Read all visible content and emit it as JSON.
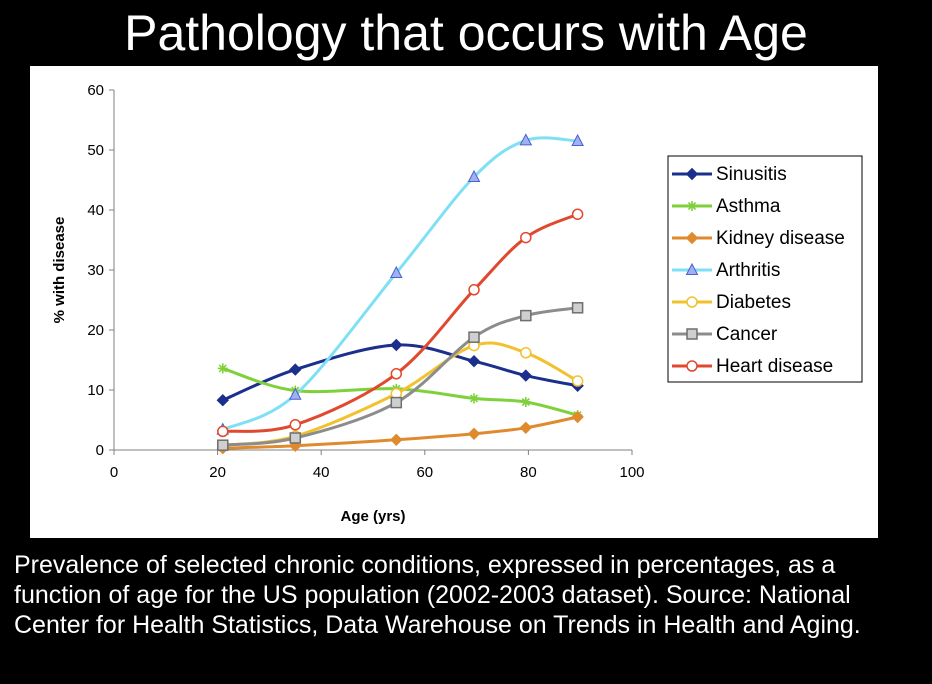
{
  "slide": {
    "title": "Pathology that occurs with Age",
    "caption": "Prevalence of selected chronic conditions, expressed in percentages, as a function of age for the US population (2002-2003 dataset). Source: National Center for Health Statistics, Data Warehouse on Trends in Health and Aging."
  },
  "chart_data": {
    "type": "line",
    "title": "",
    "xlabel": "Age (yrs)",
    "ylabel": "% with disease",
    "xlim": [
      0,
      100
    ],
    "ylim": [
      0,
      60
    ],
    "xticks": [
      0,
      20,
      40,
      60,
      80,
      100
    ],
    "yticks": [
      0,
      10,
      20,
      30,
      40,
      50,
      60
    ],
    "grid": false,
    "legend": "right",
    "series": [
      {
        "name": "Sinusitis",
        "color": "#1b2f8c",
        "marker": "diamond",
        "x": [
          21,
          35,
          54.5,
          69.5,
          79.5,
          89.5
        ],
        "y": [
          8.3,
          13.4,
          17.5,
          14.8,
          12.4,
          10.7
        ]
      },
      {
        "name": "Asthma",
        "color": "#7fd13b",
        "marker": "asterisk",
        "x": [
          21,
          35,
          54.5,
          69.5,
          79.5,
          89.5
        ],
        "y": [
          13.6,
          9.9,
          10.2,
          8.6,
          8.0,
          5.8
        ]
      },
      {
        "name": "Kidney disease",
        "color": "#e08a2e",
        "marker": "diamond",
        "x": [
          21,
          35,
          54.5,
          69.5,
          79.5,
          89.5
        ],
        "y": [
          0.3,
          0.7,
          1.7,
          2.7,
          3.7,
          5.5
        ]
      },
      {
        "name": "Arthritis",
        "color": "#7fe0f5",
        "marker": "triangle",
        "x": [
          21,
          35,
          54.5,
          69.5,
          79.5,
          89.5
        ],
        "y": [
          3.4,
          9.2,
          29.5,
          45.5,
          51.6,
          51.5
        ]
      },
      {
        "name": "Diabetes",
        "color": "#f2c12e",
        "marker": "circle",
        "x": [
          21,
          35,
          54.5,
          69.5,
          79.5,
          89.5
        ],
        "y": [
          0.8,
          2.3,
          9.4,
          17.4,
          16.2,
          11.5
        ]
      },
      {
        "name": "Cancer",
        "color": "#8c8c8c",
        "marker": "square",
        "x": [
          21,
          35,
          54.5,
          69.5,
          79.5,
          89.5
        ],
        "y": [
          0.8,
          2.0,
          7.9,
          18.8,
          22.4,
          23.7
        ]
      },
      {
        "name": "Heart disease",
        "color": "#e0492e",
        "marker": "circle",
        "x": [
          21,
          35,
          54.5,
          69.5,
          79.5,
          89.5
        ],
        "y": [
          3.1,
          4.2,
          12.7,
          26.7,
          35.4,
          39.3
        ]
      }
    ]
  }
}
